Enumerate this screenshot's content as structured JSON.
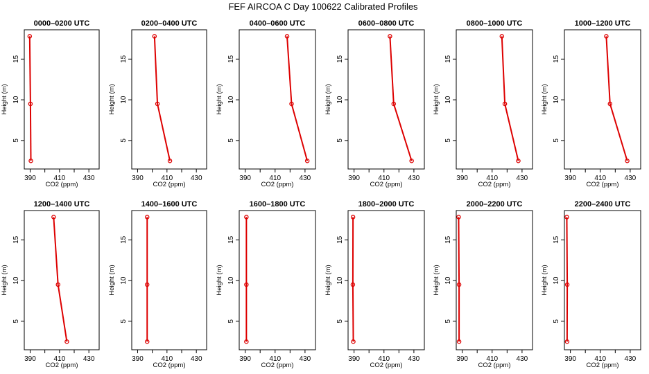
{
  "suptitle": "FEF AIRCOA C  Day 100622  Calibrated Profiles",
  "colors": {
    "line": "#dd0000",
    "marker": "#dd0000",
    "axes": "#000000",
    "background": "#ffffff"
  },
  "chart_data": [
    {
      "type": "line",
      "title": "0000–0200 UTC",
      "xlabel": "CO2 (ppm)",
      "ylabel": "Height (m)",
      "xlim": [
        386,
        437
      ],
      "ylim": [
        1.5,
        18.6
      ],
      "xticks": [
        390,
        400,
        410,
        420,
        430
      ],
      "xtick_labels": [
        "390",
        "",
        "410",
        "",
        "430"
      ],
      "yticks": [
        5,
        10,
        15
      ],
      "ytick_labels": [
        "5",
        "10",
        "15"
      ],
      "series": [
        {
          "name": "CO2",
          "heights": [
            2.5,
            9.5,
            17.8
          ],
          "values": [
            390.5,
            390.2,
            389.7
          ]
        }
      ]
    },
    {
      "type": "line",
      "title": "0200–0400 UTC",
      "xlabel": "CO2 (ppm)",
      "ylabel": "Height (m)",
      "xlim": [
        386,
        437
      ],
      "ylim": [
        1.5,
        18.6
      ],
      "xticks": [
        390,
        400,
        410,
        420,
        430
      ],
      "xtick_labels": [
        "390",
        "",
        "410",
        "",
        "430"
      ],
      "yticks": [
        5,
        10,
        15
      ],
      "ytick_labels": [
        "5",
        "10",
        "15"
      ],
      "series": [
        {
          "name": "CO2",
          "heights": [
            2.5,
            9.5,
            17.8
          ],
          "values": [
            412.0,
            403.5,
            401.5
          ]
        }
      ]
    },
    {
      "type": "line",
      "title": "0400–0600 UTC",
      "xlabel": "CO2 (ppm)",
      "ylabel": "Height (m)",
      "xlim": [
        386,
        437
      ],
      "ylim": [
        1.5,
        18.6
      ],
      "xticks": [
        390,
        400,
        410,
        420,
        430
      ],
      "xtick_labels": [
        "390",
        "",
        "410",
        "",
        "430"
      ],
      "yticks": [
        5,
        10,
        15
      ],
      "ytick_labels": [
        "5",
        "10",
        "15"
      ],
      "series": [
        {
          "name": "CO2",
          "heights": [
            2.5,
            9.5,
            17.8
          ],
          "values": [
            431.5,
            421.0,
            418.0
          ]
        }
      ]
    },
    {
      "type": "line",
      "title": "0600–0800 UTC",
      "xlabel": "CO2 (ppm)",
      "ylabel": "Height (m)",
      "xlim": [
        386,
        437
      ],
      "ylim": [
        1.5,
        18.6
      ],
      "xticks": [
        390,
        400,
        410,
        420,
        430
      ],
      "xtick_labels": [
        "390",
        "",
        "410",
        "",
        "430"
      ],
      "yticks": [
        5,
        10,
        15
      ],
      "ytick_labels": [
        "5",
        "10",
        "15"
      ],
      "series": [
        {
          "name": "CO2",
          "heights": [
            2.5,
            9.5,
            17.8
          ],
          "values": [
            428.5,
            416.5,
            414.0
          ]
        }
      ]
    },
    {
      "type": "line",
      "title": "0800–1000 UTC",
      "xlabel": "CO2 (ppm)",
      "ylabel": "Height (m)",
      "xlim": [
        386,
        437
      ],
      "ylim": [
        1.5,
        18.6
      ],
      "xticks": [
        390,
        400,
        410,
        420,
        430
      ],
      "xtick_labels": [
        "390",
        "",
        "410",
        "",
        "430"
      ],
      "yticks": [
        5,
        10,
        15
      ],
      "ytick_labels": [
        "5",
        "10",
        "15"
      ],
      "series": [
        {
          "name": "CO2",
          "heights": [
            2.5,
            9.5,
            17.8
          ],
          "values": [
            427.5,
            418.5,
            416.5
          ]
        }
      ]
    },
    {
      "type": "line",
      "title": "1000–1200 UTC",
      "xlabel": "CO2 (ppm)",
      "ylabel": "Height (m)",
      "xlim": [
        386,
        437
      ],
      "ylim": [
        1.5,
        18.6
      ],
      "xticks": [
        390,
        400,
        410,
        420,
        430
      ],
      "xtick_labels": [
        "390",
        "",
        "410",
        "",
        "430"
      ],
      "yticks": [
        5,
        10,
        15
      ],
      "ytick_labels": [
        "5",
        "10",
        "15"
      ],
      "series": [
        {
          "name": "CO2",
          "heights": [
            2.5,
            9.5,
            17.8
          ],
          "values": [
            428.0,
            416.5,
            414.0
          ]
        }
      ]
    },
    {
      "type": "line",
      "title": "1200–1400 UTC",
      "xlabel": "CO2 (ppm)",
      "ylabel": "Height (m)",
      "xlim": [
        386,
        437
      ],
      "ylim": [
        1.5,
        18.6
      ],
      "xticks": [
        390,
        400,
        410,
        420,
        430
      ],
      "xtick_labels": [
        "390",
        "",
        "410",
        "",
        "430"
      ],
      "yticks": [
        5,
        10,
        15
      ],
      "ytick_labels": [
        "5",
        "10",
        "15"
      ],
      "series": [
        {
          "name": "CO2",
          "heights": [
            2.5,
            9.5,
            17.8
          ],
          "values": [
            415.0,
            409.0,
            406.0
          ]
        }
      ]
    },
    {
      "type": "line",
      "title": "1400–1600 UTC",
      "xlabel": "CO2 (ppm)",
      "ylabel": "Height (m)",
      "xlim": [
        386,
        437
      ],
      "ylim": [
        1.5,
        18.6
      ],
      "xticks": [
        390,
        400,
        410,
        420,
        430
      ],
      "xtick_labels": [
        "390",
        "",
        "410",
        "",
        "430"
      ],
      "yticks": [
        5,
        10,
        15
      ],
      "ytick_labels": [
        "5",
        "10",
        "15"
      ],
      "series": [
        {
          "name": "CO2",
          "heights": [
            2.5,
            9.5,
            17.8
          ],
          "values": [
            396.5,
            396.5,
            396.5
          ]
        }
      ]
    },
    {
      "type": "line",
      "title": "1600–1800 UTC",
      "xlabel": "CO2 (ppm)",
      "ylabel": "Height (m)",
      "xlim": [
        386,
        437
      ],
      "ylim": [
        1.5,
        18.6
      ],
      "xticks": [
        390,
        400,
        410,
        420,
        430
      ],
      "xtick_labels": [
        "390",
        "",
        "410",
        "",
        "430"
      ],
      "yticks": [
        5,
        10,
        15
      ],
      "ytick_labels": [
        "5",
        "10",
        "15"
      ],
      "series": [
        {
          "name": "CO2",
          "heights": [
            2.5,
            9.5,
            17.8
          ],
          "values": [
            390.8,
            390.8,
            390.8
          ]
        }
      ]
    },
    {
      "type": "line",
      "title": "1800–2000 UTC",
      "xlabel": "CO2 (ppm)",
      "ylabel": "Height (m)",
      "xlim": [
        386,
        437
      ],
      "ylim": [
        1.5,
        18.6
      ],
      "xticks": [
        390,
        400,
        410,
        420,
        430
      ],
      "xtick_labels": [
        "390",
        "",
        "410",
        "",
        "430"
      ],
      "yticks": [
        5,
        10,
        15
      ],
      "ytick_labels": [
        "5",
        "10",
        "15"
      ],
      "series": [
        {
          "name": "CO2",
          "heights": [
            2.5,
            9.5,
            17.8
          ],
          "values": [
            389.5,
            389.2,
            389.3
          ]
        }
      ]
    },
    {
      "type": "line",
      "title": "2000–2200 UTC",
      "xlabel": "CO2 (ppm)",
      "ylabel": "Height (m)",
      "xlim": [
        386,
        437
      ],
      "ylim": [
        1.5,
        18.6
      ],
      "xticks": [
        390,
        400,
        410,
        420,
        430
      ],
      "xtick_labels": [
        "390",
        "",
        "410",
        "",
        "430"
      ],
      "yticks": [
        5,
        10,
        15
      ],
      "ytick_labels": [
        "5",
        "10",
        "15"
      ],
      "series": [
        {
          "name": "CO2",
          "heights": [
            2.5,
            9.5,
            17.8
          ],
          "values": [
            387.9,
            387.9,
            387.6
          ]
        }
      ]
    },
    {
      "type": "line",
      "title": "2200–2400 UTC",
      "xlabel": "CO2 (ppm)",
      "ylabel": "Height (m)",
      "xlim": [
        386,
        437
      ],
      "ylim": [
        1.5,
        18.6
      ],
      "xticks": [
        390,
        400,
        410,
        420,
        430
      ],
      "xtick_labels": [
        "390",
        "",
        "410",
        "",
        "430"
      ],
      "yticks": [
        5,
        10,
        15
      ],
      "ytick_labels": [
        "5",
        "10",
        "15"
      ],
      "series": [
        {
          "name": "CO2",
          "heights": [
            2.5,
            9.5,
            17.8
          ],
          "values": [
            387.8,
            387.9,
            387.6
          ]
        }
      ]
    }
  ]
}
